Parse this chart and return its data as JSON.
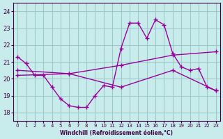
{
  "xlabel": "Windchill (Refroidissement éolien,°C)",
  "background_color": "#c8ecec",
  "grid_color": "#a0c8c8",
  "line_color": "#990099",
  "ylim": [
    17.5,
    24.5
  ],
  "xlim": [
    -0.5,
    23.5
  ],
  "yticks": [
    18,
    19,
    20,
    21,
    22,
    23,
    24
  ],
  "xticks": [
    0,
    1,
    2,
    3,
    4,
    5,
    6,
    7,
    8,
    9,
    10,
    11,
    12,
    13,
    14,
    15,
    16,
    17,
    18,
    19,
    20,
    21,
    22,
    23
  ],
  "series1_x": [
    0,
    1,
    2,
    3,
    4,
    5,
    6,
    7,
    8,
    9,
    10,
    11,
    12,
    13,
    14,
    15,
    16,
    17,
    18,
    19,
    20,
    21,
    22,
    23
  ],
  "series1_y": [
    21.3,
    20.9,
    20.2,
    20.2,
    19.5,
    18.8,
    18.4,
    18.3,
    18.3,
    19.0,
    19.6,
    19.5,
    21.8,
    23.3,
    23.3,
    22.4,
    23.5,
    23.2,
    21.5,
    20.7,
    20.5,
    20.6,
    19.5,
    19.3
  ],
  "series2_x": [
    0,
    6,
    12,
    18,
    23
  ],
  "series2_y": [
    20.5,
    20.3,
    20.8,
    21.4,
    21.6
  ],
  "series3_x": [
    0,
    6,
    12,
    18,
    23
  ],
  "series3_y": [
    20.2,
    20.3,
    19.5,
    20.5,
    19.3
  ]
}
